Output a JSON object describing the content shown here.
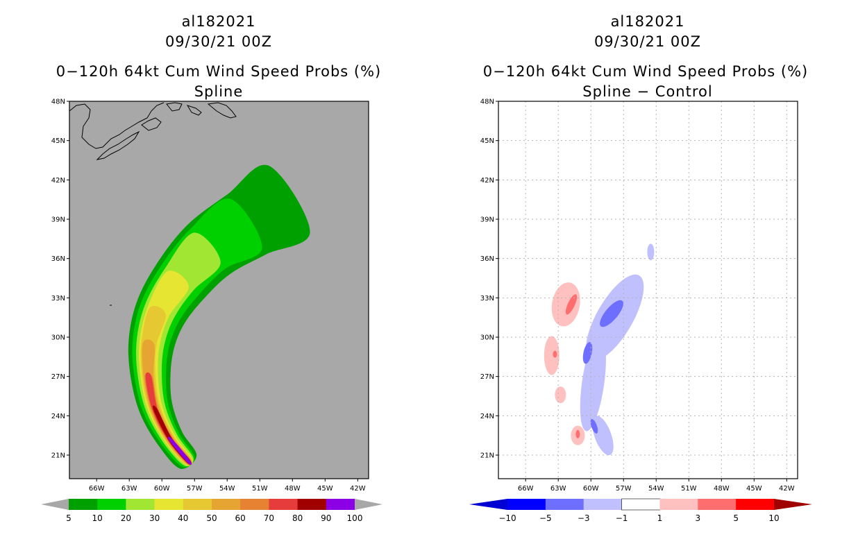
{
  "colors": {
    "gray_bg": "#a8a8a8",
    "coast": "#000000",
    "prob": [
      "#00a000",
      "#00d000",
      "#a0e632",
      "#e6e632",
      "#e6c832",
      "#e6a532",
      "#e68232",
      "#e63c3c",
      "#a00000",
      "#8c00e6"
    ],
    "diff": [
      "#0000d2",
      "#0000ff",
      "#6e6eff",
      "#c0c0ff",
      "#ffffff",
      "#ffc0c0",
      "#ff6e6e",
      "#ff0000",
      "#a00000"
    ]
  },
  "panels": [
    {
      "id": "left",
      "storm": "al182021",
      "date": "09/30/21 00Z",
      "title_line": "0−120h 64kt Cum Wind Speed Probs (%)",
      "subtitle": "Spline",
      "colorbar_labels": [
        "5",
        "10",
        "20",
        "30",
        "40",
        "50",
        "60",
        "70",
        "80",
        "90",
        "100"
      ]
    },
    {
      "id": "right",
      "storm": "al182021",
      "date": "09/30/21 00Z",
      "title_line": "0−120h 64kt Cum Wind Speed Probs (%)",
      "subtitle": "Spline − Control",
      "colorbar_labels": [
        "−10",
        "−5",
        "−3",
        "−1",
        "1",
        "3",
        "5",
        "10"
      ]
    }
  ],
  "chart_data": [
    {
      "type": "contour-map",
      "title": "al182021 09/30/21 00Z 0−120h 64kt Cum Wind Speed Probs (%) Spline",
      "x_tick_labels": [
        "66W",
        "63W",
        "60W",
        "57W",
        "54W",
        "51W",
        "48W",
        "45W",
        "42W"
      ],
      "y_tick_labels": [
        "21N",
        "24N",
        "27N",
        "30N",
        "33N",
        "36N",
        "39N",
        "42N",
        "45N",
        "48N"
      ],
      "lon_range": [
        -68.5,
        -41.0
      ],
      "lat_range": [
        19.2,
        48.0
      ],
      "contour_levels": [
        5,
        10,
        20,
        30,
        40,
        50,
        60,
        70,
        80,
        90,
        100
      ],
      "track_centerline": [
        [
          -57.5,
          20.5
        ],
        [
          -59.2,
          22.2
        ],
        [
          -60.6,
          24.5
        ],
        [
          -61.2,
          27.0
        ],
        [
          -61.2,
          29.5
        ],
        [
          -60.4,
          32.0
        ],
        [
          -58.6,
          34.5
        ],
        [
          -56.0,
          37.0
        ],
        [
          -52.5,
          39.0
        ],
        [
          -48.6,
          41.0
        ]
      ],
      "max_probability_region": "near 21N 58W (90-100%)"
    },
    {
      "type": "contour-map",
      "title": "al182021 09/30/21 00Z 0−120h 64kt Cum Wind Speed Probs (%) Spline − Control",
      "x_tick_labels": [
        "66W",
        "63W",
        "60W",
        "57W",
        "54W",
        "51W",
        "48W",
        "45W",
        "42W"
      ],
      "y_tick_labels": [
        "21N",
        "24N",
        "27N",
        "30N",
        "33N",
        "36N",
        "39N",
        "42N",
        "45N",
        "48N"
      ],
      "lon_range": [
        -68.5,
        -41.0
      ],
      "lat_range": [
        19.2,
        48.0
      ],
      "contour_levels": [
        -10,
        -5,
        -3,
        -1,
        1,
        3,
        5,
        10
      ],
      "positive_region": "west side of track, 21N-35N, up to +3 to +5",
      "negative_region": "east side of track, 22N-38N, down to -3 to -5"
    }
  ]
}
